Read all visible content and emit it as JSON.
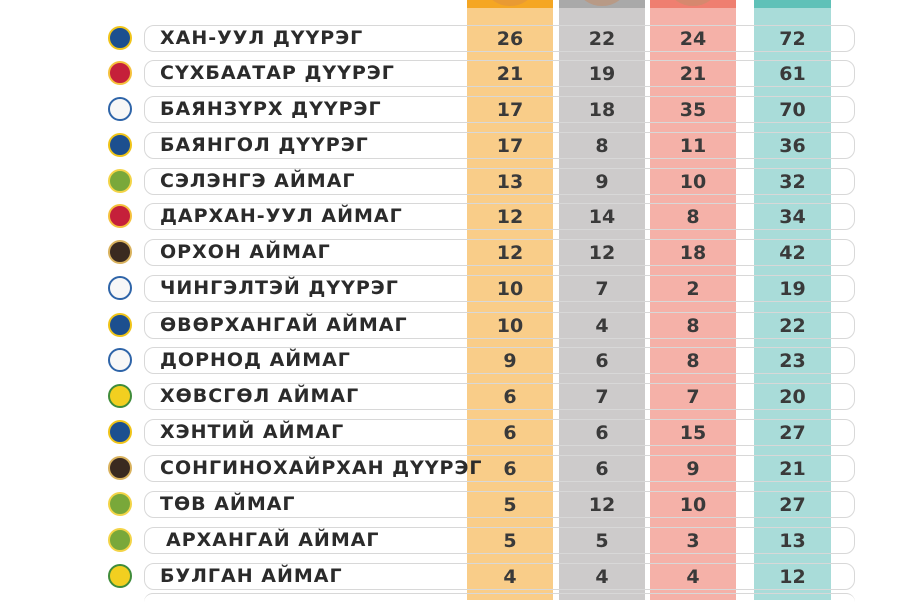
{
  "table": {
    "rows": [
      {
        "name": "ХАН-УУЛ ДҮҮРЭГ",
        "gold": "26",
        "silver": "22",
        "bronze": "24",
        "total": "72",
        "logo_icon": "khan-uul-emblem"
      },
      {
        "name": "СҮХБААТАР ДҮҮРЭГ",
        "gold": "21",
        "silver": "19",
        "bronze": "21",
        "total": "61",
        "logo_icon": "sukhbaatar-emblem"
      },
      {
        "name": "БАЯНЗҮРХ ДҮҮРЭГ",
        "gold": "17",
        "silver": "18",
        "bronze": "35",
        "total": "70",
        "logo_icon": "bayanzurkh-emblem"
      },
      {
        "name": "БАЯНГОЛ ДҮҮРЭГ",
        "gold": "17",
        "silver": "8",
        "bronze": "11",
        "total": "36",
        "logo_icon": "bayangol-emblem"
      },
      {
        "name": "СЭЛЭНГЭ АЙМАГ",
        "gold": "13",
        "silver": "9",
        "bronze": "10",
        "total": "32",
        "logo_icon": "selenge-emblem"
      },
      {
        "name": "ДАРХАН-УУЛ АЙМАГ",
        "gold": "12",
        "silver": "14",
        "bronze": "8",
        "total": "34",
        "logo_icon": "darkhan-uul-emblem"
      },
      {
        "name": "ОРХОН АЙМАГ",
        "gold": "12",
        "silver": "12",
        "bronze": "18",
        "total": "42",
        "logo_icon": "orkhon-emblem"
      },
      {
        "name": "ЧИНГЭЛТЭЙ ДҮҮРЭГ",
        "gold": "10",
        "silver": "7",
        "bronze": "2",
        "total": "19",
        "logo_icon": "chingeltei-emblem"
      },
      {
        "name": "ӨВӨРХАНГАЙ АЙМАГ",
        "gold": "10",
        "silver": "4",
        "bronze": "8",
        "total": "22",
        "logo_icon": "uvurkhangai-emblem"
      },
      {
        "name": "ДОРНОД АЙМАГ",
        "gold": "9",
        "silver": "6",
        "bronze": "8",
        "total": "23",
        "logo_icon": "dornod-emblem"
      },
      {
        "name": "ХӨВСГӨЛ АЙМАГ",
        "gold": "6",
        "silver": "7",
        "bronze": "7",
        "total": "20",
        "logo_icon": "khuvsgul-emblem"
      },
      {
        "name": "ХЭНТИЙ АЙМАГ",
        "gold": "6",
        "silver": "6",
        "bronze": "15",
        "total": "27",
        "logo_icon": "khentii-emblem"
      },
      {
        "name": "СОНГИНОХАЙРХАН ДҮҮРЭГ",
        "gold": "6",
        "silver": "6",
        "bronze": "9",
        "total": "21",
        "logo_icon": "songinokhairkhan-emblem"
      },
      {
        "name": "ТӨВ АЙМАГ",
        "gold": "5",
        "silver": "12",
        "bronze": "10",
        "total": "27",
        "logo_icon": "tuv-emblem"
      },
      {
        "name": "АРХАНГАЙ АЙМАГ",
        "gold": "5",
        "silver": "5",
        "bronze": "3",
        "total": "13",
        "logo_icon": "arkhangai-emblem"
      },
      {
        "name": "БУЛГАН АЙМАГ",
        "gold": "4",
        "silver": "4",
        "bronze": "4",
        "total": "12",
        "logo_icon": "bulgan-emblem"
      }
    ]
  },
  "colors": {
    "gold_column": "#f9cd89",
    "silver_column": "#cdcbcb",
    "bronze_column": "#f5b1a8",
    "total_column": "#a9dcd9"
  }
}
